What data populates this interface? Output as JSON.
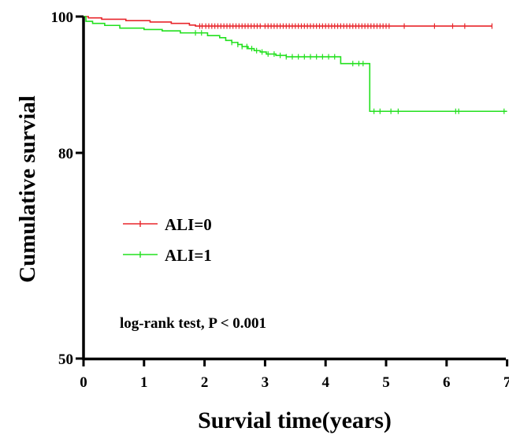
{
  "chart_data": {
    "type": "line",
    "title": "",
    "xlabel": "Survial time(years)",
    "ylabel": "Cumulative survial",
    "xlim": [
      0,
      7
    ],
    "xticks": [
      "0",
      "1",
      "2",
      "3",
      "4",
      "5",
      "6",
      "7"
    ],
    "ylim": [
      50,
      100
    ],
    "yticks": [
      "50",
      "80",
      "100"
    ],
    "grid": false,
    "legend_position": "center-left",
    "annotation": "log-rank test, P < 0.001",
    "series": [
      {
        "name": "ALI=0",
        "color": "#e8262b",
        "points": [
          [
            0,
            100
          ],
          [
            0.08,
            99.8
          ],
          [
            0.3,
            99.6
          ],
          [
            0.7,
            99.4
          ],
          [
            1.1,
            99.2
          ],
          [
            1.45,
            99.0
          ],
          [
            1.75,
            98.75
          ],
          [
            1.85,
            98.6
          ],
          [
            6.75,
            98.6
          ]
        ],
        "censor_ticks": [
          1.92,
          1.96,
          2.02,
          2.07,
          2.12,
          2.17,
          2.22,
          2.27,
          2.32,
          2.37,
          2.42,
          2.47,
          2.52,
          2.57,
          2.62,
          2.67,
          2.72,
          2.77,
          2.82,
          2.87,
          2.92,
          3.0,
          3.05,
          3.1,
          3.15,
          3.2,
          3.25,
          3.3,
          3.35,
          3.4,
          3.45,
          3.5,
          3.55,
          3.6,
          3.65,
          3.7,
          3.75,
          3.8,
          3.85,
          3.9,
          3.95,
          4.0,
          4.05,
          4.1,
          4.15,
          4.2,
          4.25,
          4.3,
          4.35,
          4.4,
          4.45,
          4.5,
          4.55,
          4.6,
          4.65,
          4.7,
          4.75,
          4.8,
          4.85,
          4.9,
          4.95,
          5.0,
          5.05,
          5.3,
          5.8,
          6.1,
          6.3,
          6.75
        ]
      },
      {
        "name": "ALI=1",
        "color": "#22e01e",
        "points": [
          [
            0,
            100
          ],
          [
            0.04,
            99.3
          ],
          [
            0.15,
            99.0
          ],
          [
            0.35,
            98.7
          ],
          [
            0.6,
            98.3
          ],
          [
            1.0,
            98.1
          ],
          [
            1.3,
            97.9
          ],
          [
            1.6,
            97.6
          ],
          [
            2.05,
            97.2
          ],
          [
            2.25,
            96.9
          ],
          [
            2.35,
            96.5
          ],
          [
            2.45,
            96.2
          ],
          [
            2.55,
            95.9
          ],
          [
            2.62,
            95.6
          ],
          [
            2.72,
            95.3
          ],
          [
            2.82,
            95.0
          ],
          [
            2.92,
            94.8
          ],
          [
            3.02,
            94.5
          ],
          [
            3.18,
            94.3
          ],
          [
            3.35,
            94.1
          ],
          [
            4.2,
            94.1
          ],
          [
            4.25,
            93.1
          ],
          [
            4.68,
            93.1
          ],
          [
            4.73,
            86.1
          ],
          [
            7.0,
            86.1
          ]
        ],
        "censor_ticks": [
          1.85,
          1.95,
          2.45,
          2.55,
          2.62,
          2.7,
          2.78,
          2.86,
          2.95,
          3.05,
          3.15,
          3.25,
          3.35,
          3.45,
          3.55,
          3.65,
          3.75,
          3.85,
          3.95,
          4.05,
          4.15,
          4.45,
          4.55,
          4.62,
          4.8,
          4.9,
          5.08,
          5.2,
          6.15,
          6.2,
          6.95
        ]
      }
    ]
  }
}
